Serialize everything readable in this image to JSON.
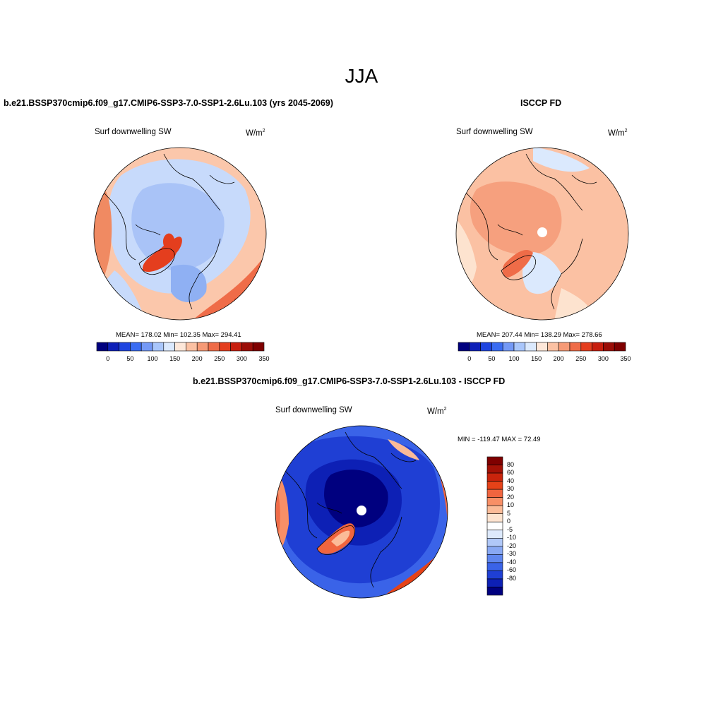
{
  "season": "JJA",
  "panels": [
    {
      "title": "b.e21.BSSP370cmip6.f09_g17.CMIP6-SSP3-7.0-SSP1-2.6Lu.103 (yrs 2045-2069)",
      "variable": "Surf downwelling SW",
      "units": "W/m",
      "units_sup": "2",
      "stats": "MEAN= 178.02  Min= 102.35  Max= 294.41"
    },
    {
      "title": "ISCCP FD",
      "variable": "Surf downwelling SW",
      "units": "W/m",
      "units_sup": "2",
      "stats": "MEAN= 207.44  Min= 138.29  Max= 278.66"
    },
    {
      "title": "b.e21.BSSP370cmip6.f09_g17.CMIP6-SSP3-7.0-SSP1-2.6Lu.103 - ISCCP FD",
      "variable": "Surf downwelling SW",
      "units": "W/m",
      "units_sup": "2",
      "stats": "MIN = -119.47 MAX =  72.49"
    }
  ],
  "abs_colorbar": {
    "colors": [
      "#00007f",
      "#0d1fb8",
      "#1f45e0",
      "#3a6cf2",
      "#7499f6",
      "#a9c6fb",
      "#dbe9fd",
      "#fde7d9",
      "#fbc1a3",
      "#f69a76",
      "#ef6c48",
      "#e43e1e",
      "#c71e0e",
      "#9b0d07",
      "#7f0000"
    ],
    "ticks": [
      "0",
      "50",
      "100",
      "150",
      "200",
      "250",
      "300",
      "350"
    ]
  },
  "diff_colorbar": {
    "colors": [
      "#7f0000",
      "#a41106",
      "#c9240c",
      "#e54218",
      "#f0653f",
      "#f88f66",
      "#fbbb98",
      "#fde3cf",
      "#ffffff",
      "#dde9fc",
      "#b0c8f8",
      "#88a8f3",
      "#5f86ee",
      "#3a63e8",
      "#1f3fd4",
      "#0d20b5",
      "#00007f"
    ],
    "ticks": [
      "80",
      "60",
      "40",
      "30",
      "20",
      "10",
      "5",
      "0",
      "-5",
      "-10",
      "-20",
      "-30",
      "-40",
      "-60",
      "-80"
    ]
  }
}
